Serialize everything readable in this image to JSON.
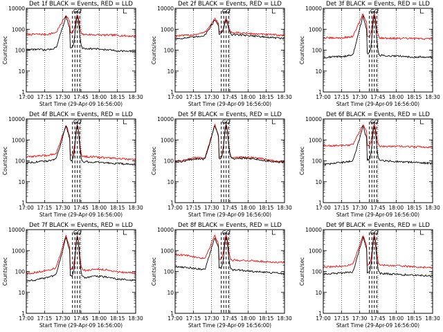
{
  "chart_data": [
    {
      "type": "line",
      "title": "Det 1f BLACK = Events, RED = LLD",
      "xlabel": "Start Time (29-Apr-09 16:56:00)",
      "ylabel": "Counts/sec",
      "yscale": "log",
      "ylim": [
        1,
        10000
      ],
      "xlim": [
        "17:00",
        "18:30"
      ],
      "x_ticks": [
        "17:00",
        "17:15",
        "17:30",
        "17:45",
        "18:00",
        "18:15",
        "18:30"
      ],
      "y_ticks": [
        "1",
        "10",
        "100",
        "1000",
        "10000"
      ],
      "grid": "vertical dotted",
      "markers": [
        "GO",
        "DO"
      ],
      "event_lines": [
        "17:38",
        "17:40",
        "17:42",
        "17:44"
      ],
      "series": [
        {
          "color": "#ff0000",
          "values": [
            550,
            580,
            560,
            700,
            4800,
            700,
            560,
            540,
            520,
            520,
            480,
            460
          ]
        },
        {
          "color": "#000000",
          "values": [
            105,
            110,
            100,
            130,
            4200,
            130,
            120,
            115,
            105,
            95,
            90,
            85
          ]
        }
      ]
    },
    {
      "type": "line",
      "title": "Det 2f BLACK = Events, RED = LLD",
      "xlabel": "Start Time (29-Apr-09 16:56:00)",
      "ylabel": "Counts/sec",
      "yscale": "log",
      "ylim": [
        1,
        10000
      ],
      "xlim": [
        "17:00",
        "18:30"
      ],
      "x_ticks": [
        "17:00",
        "17:15",
        "17:30",
        "17:45",
        "18:00",
        "18:15",
        "18:30"
      ],
      "y_ticks": [
        "1",
        "10",
        "100",
        "1000",
        "10000"
      ],
      "grid": "vertical dotted",
      "markers": [
        "GO",
        "DO"
      ],
      "event_lines": [
        "17:38",
        "17:40",
        "17:42",
        "17:44"
      ],
      "series": [
        {
          "color": "#ff0000",
          "values": [
            480,
            500,
            560,
            700,
            3200,
            750,
            680,
            650,
            600,
            560,
            540,
            500
          ]
        },
        {
          "color": "#000000",
          "values": [
            350,
            380,
            420,
            520,
            2800,
            600,
            560,
            520,
            480,
            420,
            390,
            360
          ]
        }
      ]
    },
    {
      "type": "line",
      "title": "Det 3f BLACK = Events, RED = LLD",
      "xlabel": "Start Time (29-Apr-09 16:56:00)",
      "ylabel": "Counts/sec",
      "yscale": "log",
      "ylim": [
        1,
        10000
      ],
      "xlim": [
        "17:00",
        "18:30"
      ],
      "x_ticks": [
        "17:00",
        "17:15",
        "17:30",
        "17:45",
        "18:00",
        "18:15",
        "18:30"
      ],
      "y_ticks": [
        "1",
        "10",
        "100",
        "1000",
        "10000"
      ],
      "grid": "vertical dotted",
      "markers": [
        "GO",
        "DO"
      ],
      "event_lines": [
        "17:38",
        "17:40",
        "17:42",
        "17:44"
      ],
      "series": [
        {
          "color": "#ff0000",
          "values": [
            380,
            380,
            390,
            450,
            5500,
            450,
            380,
            370,
            360,
            360,
            350,
            350
          ]
        },
        {
          "color": "#000000",
          "values": [
            45,
            48,
            50,
            60,
            4500,
            70,
            55,
            52,
            50,
            48,
            48,
            45
          ]
        }
      ]
    },
    {
      "type": "line",
      "title": "Det 4f BLACK = Events, RED = LLD",
      "xlabel": "Start Time (29-Apr-09 16:56:00)",
      "ylabel": "Counts/sec",
      "yscale": "log",
      "ylim": [
        1,
        10000
      ],
      "xlim": [
        "17:00",
        "18:30"
      ],
      "x_ticks": [
        "17:00",
        "17:15",
        "17:30",
        "17:45",
        "18:00",
        "18:15",
        "18:30"
      ],
      "y_ticks": [
        "1",
        "10",
        "100",
        "1000",
        "10000"
      ],
      "grid": "vertical dotted",
      "markers": [
        "GO",
        "DO"
      ],
      "event_lines": [
        "17:38",
        "17:40",
        "17:42",
        "17:44"
      ],
      "series": [
        {
          "color": "#ff0000",
          "values": [
            150,
            170,
            180,
            220,
            5200,
            190,
            160,
            150,
            140,
            130,
            120,
            110
          ]
        },
        {
          "color": "#000000",
          "values": [
            80,
            90,
            95,
            120,
            4800,
            110,
            90,
            85,
            80,
            75,
            70,
            65
          ]
        }
      ]
    },
    {
      "type": "line",
      "title": "Det 5f BLACK = Events, RED = LLD",
      "xlabel": "Start Time (29-Apr-09 16:56:00)",
      "ylabel": "Counts/sec",
      "yscale": "log",
      "ylim": [
        1,
        10000
      ],
      "xlim": [
        "17:00",
        "18:30"
      ],
      "x_ticks": [
        "17:00",
        "17:15",
        "17:30",
        "17:45",
        "18:00",
        "18:15",
        "18:30"
      ],
      "y_ticks": [
        "1",
        "10",
        "100",
        "1000",
        "10000"
      ],
      "grid": "vertical dotted",
      "markers": [
        "GO",
        "DO"
      ],
      "event_lines": [
        "17:38",
        "17:40",
        "17:42",
        "17:44"
      ],
      "series": [
        {
          "color": "#ff0000",
          "values": [
            95,
            110,
            140,
            130,
            5500,
            150,
            140,
            150,
            140,
            120,
            100,
            90
          ]
        },
        {
          "color": "#000000",
          "values": [
            85,
            100,
            125,
            120,
            5000,
            135,
            125,
            135,
            125,
            105,
            90,
            80
          ]
        }
      ]
    },
    {
      "type": "line",
      "title": "Det 6f BLACK = Events, RED = LLD",
      "xlabel": "Start Time (29-Apr-09 16:56:00)",
      "ylabel": "Counts/sec",
      "yscale": "log",
      "ylim": [
        1,
        10000
      ],
      "xlim": [
        "17:00",
        "18:30"
      ],
      "x_ticks": [
        "17:00",
        "17:15",
        "17:30",
        "17:45",
        "18:00",
        "18:15",
        "18:30"
      ],
      "y_ticks": [
        "1",
        "10",
        "100",
        "1000",
        "10000"
      ],
      "grid": "vertical dotted",
      "markers": [
        "GO",
        "DO"
      ],
      "event_lines": [
        "17:38",
        "17:40",
        "17:42",
        "17:44"
      ],
      "series": [
        {
          "color": "#ff0000",
          "values": [
            520,
            530,
            540,
            600,
            5500,
            520,
            500,
            490,
            480,
            470,
            460,
            450
          ]
        },
        {
          "color": "#000000",
          "values": [
            65,
            75,
            85,
            100,
            4500,
            110,
            100,
            95,
            90,
            85,
            80,
            75
          ]
        }
      ]
    },
    {
      "type": "line",
      "title": "Det 7f BLACK = Events, RED = LLD",
      "xlabel": "Start Time (29-Apr-09 16:56:00)",
      "ylabel": "Counts/sec",
      "yscale": "log",
      "ylim": [
        1,
        10000
      ],
      "xlim": [
        "17:00",
        "18:30"
      ],
      "x_ticks": [
        "17:00",
        "17:15",
        "17:30",
        "17:45",
        "18:00",
        "18:15",
        "18:30"
      ],
      "y_ticks": [
        "1",
        "10",
        "100",
        "1000",
        "10000"
      ],
      "grid": "vertical dotted",
      "markers": [
        "GO",
        "DO"
      ],
      "event_lines": [
        "17:38",
        "17:40",
        "17:42",
        "17:44"
      ],
      "series": [
        {
          "color": "#ff0000",
          "values": [
            80,
            90,
            110,
            150,
            5000,
            130,
            110,
            130,
            120,
            100,
            90,
            85
          ]
        },
        {
          "color": "#000000",
          "values": [
            35,
            40,
            50,
            70,
            4500,
            60,
            50,
            60,
            55,
            45,
            40,
            38
          ]
        }
      ]
    },
    {
      "type": "line",
      "title": "Det 8f BLACK = Events, RED = LLD",
      "xlabel": "Start Time (29-Apr-09 16:56:00)",
      "ylabel": "Counts/sec",
      "yscale": "log",
      "ylim": [
        1,
        10000
      ],
      "xlim": [
        "17:00",
        "18:30"
      ],
      "x_ticks": [
        "17:00",
        "17:15",
        "17:30",
        "17:45",
        "18:00",
        "18:15",
        "18:30"
      ],
      "y_ticks": [
        "1",
        "10",
        "100",
        "1000",
        "10000"
      ],
      "grid": "vertical dotted",
      "markers": [
        "GO",
        "DO"
      ],
      "event_lines": [
        "17:38",
        "17:40",
        "17:42",
        "17:44"
      ],
      "series": [
        {
          "color": "#ff0000",
          "values": [
            650,
            600,
            500,
            420,
            5500,
            400,
            350,
            330,
            320,
            300,
            280,
            270
          ]
        },
        {
          "color": "#000000",
          "values": [
            170,
            160,
            140,
            120,
            4500,
            150,
            120,
            110,
            100,
            90,
            85,
            80
          ]
        }
      ]
    },
    {
      "type": "line",
      "title": "Det 9f BLACK = Events, RED = LLD",
      "xlabel": "Start Time (29-Apr-09 16:56:00)",
      "ylabel": "Counts/sec",
      "yscale": "log",
      "ylim": [
        1,
        10000
      ],
      "xlim": [
        "17:00",
        "18:30"
      ],
      "x_ticks": [
        "17:00",
        "17:15",
        "17:30",
        "17:45",
        "18:00",
        "18:15",
        "18:30"
      ],
      "y_ticks": [
        "1",
        "10",
        "100",
        "1000",
        "10000"
      ],
      "grid": "vertical dotted",
      "markers": [
        "GO",
        "DO"
      ],
      "event_lines": [
        "17:38",
        "17:40",
        "17:42",
        "17:44"
      ],
      "series": [
        {
          "color": "#ff0000",
          "values": [
            160,
            170,
            180,
            220,
            5500,
            220,
            200,
            190,
            180,
            170,
            160,
            150
          ]
        },
        {
          "color": "#000000",
          "values": [
            75,
            80,
            85,
            95,
            4500,
            90,
            80,
            75,
            70,
            68,
            65,
            60
          ]
        }
      ]
    }
  ]
}
